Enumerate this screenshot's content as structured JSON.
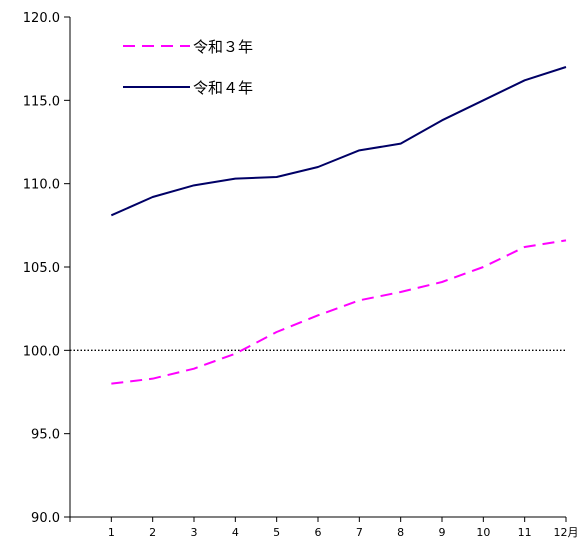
{
  "chart_data": {
    "type": "line",
    "title": "",
    "xlabel": "",
    "ylabel": "",
    "categories": [
      "1",
      "2",
      "3",
      "4",
      "5",
      "6",
      "7",
      "8",
      "9",
      "10",
      "11",
      "12月"
    ],
    "ylim": [
      90.0,
      120.0
    ],
    "y_ticks": [
      "90.0",
      "95.0",
      "100.0",
      "105.0",
      "110.0",
      "115.0",
      "120.0"
    ],
    "reference_line": 100.0,
    "grid": false,
    "legend_position": "top-left",
    "series": [
      {
        "name": "令和３年",
        "color": "#ff00ff",
        "style": "dashed",
        "values": [
          98.0,
          98.3,
          98.9,
          99.8,
          101.1,
          102.1,
          103.0,
          103.5,
          104.1,
          105.0,
          106.2,
          106.6
        ]
      },
      {
        "name": "令和４年",
        "color": "#000066",
        "style": "solid",
        "values": [
          108.1,
          109.2,
          109.9,
          110.3,
          110.4,
          111.0,
          112.0,
          112.4,
          113.8,
          115.0,
          116.2,
          117.0
        ]
      }
    ]
  }
}
